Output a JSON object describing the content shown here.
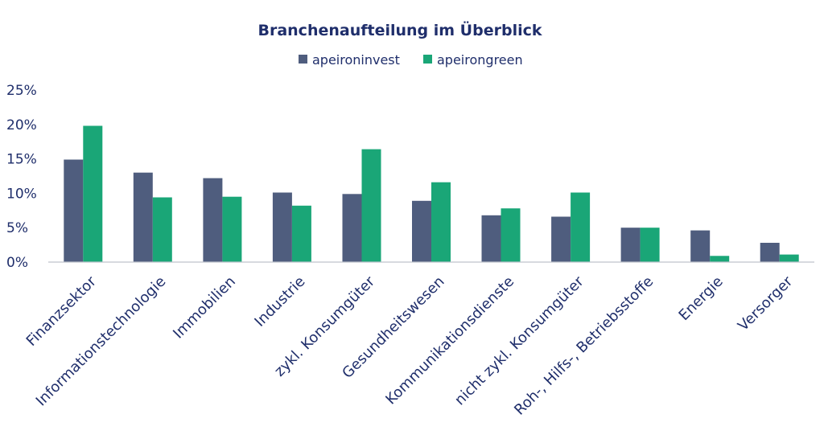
{
  "chart_data": {
    "type": "bar",
    "title": "Branchenaufteilung im Überblick",
    "categories": [
      "Finanzsektor",
      "Informationstechnologie",
      "Immobilien",
      "Industrie",
      "zykl. Konsumgüter",
      "Gesundheitswesen",
      "Kommunikationsdienste",
      "nicht zykl. Konsumgüter",
      "Roh-, Hilfs-, Betriebsstoffe",
      "Energie",
      "Versorger"
    ],
    "series": [
      {
        "name": "apeironinvest",
        "color": "#4f5d7e",
        "values": [
          14.9,
          13.0,
          12.2,
          10.1,
          9.9,
          8.9,
          6.8,
          6.6,
          5.0,
          4.6,
          2.8
        ]
      },
      {
        "name": "apeirongreen",
        "color": "#1aa677",
        "values": [
          19.8,
          9.4,
          9.5,
          8.2,
          16.4,
          11.6,
          7.8,
          10.1,
          5.0,
          0.9,
          1.1
        ]
      }
    ],
    "y_ticks": [
      "0%",
      "5%",
      "10%",
      "15%",
      "20%",
      "25%"
    ],
    "ylim": [
      0,
      25
    ],
    "grid": false,
    "legend": "top-center",
    "xlabel": "",
    "ylabel": ""
  }
}
